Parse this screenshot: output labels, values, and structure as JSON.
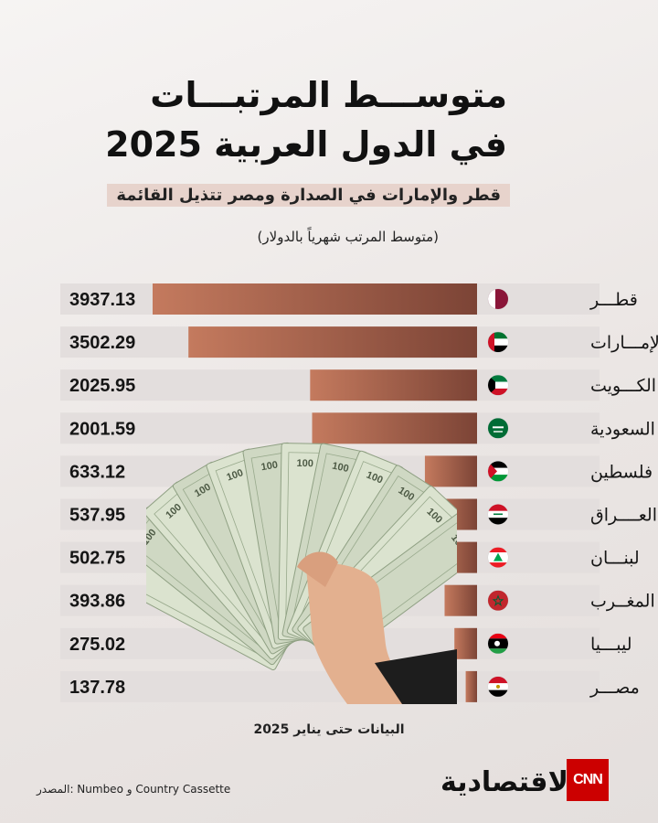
{
  "title_line1": "متوســـط المرتبـــات",
  "title_line2": "في الدول العربية 2025",
  "subtitle": "قطر والإمارات في الصدارة ومصر تتذيل القائمة",
  "unit_note": "(متوسط المرتب شهرياً بالدولار)",
  "footnote": "البيانات حتى يناير 2025",
  "source": "المصدر: Numbeo و Country Cassette",
  "brand": "الاقتصادية",
  "cnn": "CNN",
  "colors": {
    "bar_light": "#c47a5e",
    "bar_dark": "#7c4436",
    "row_bg": "#e3dedd"
  },
  "chart_data": {
    "type": "bar",
    "orientation": "horizontal",
    "categories": [
      "قطـــر",
      "الإمـــارات",
      "الكـــويت",
      "السعودية",
      "فلسطين",
      "العــــراق",
      "لبنـــان",
      "المغــرب",
      "ليبـــيا",
      "مصـــر"
    ],
    "values": [
      3937.13,
      3502.29,
      2025.95,
      2001.59,
      633.12,
      537.95,
      502.75,
      393.86,
      275.02,
      137.78
    ],
    "value_labels": [
      "3937.13",
      "3502.29",
      "2025.95",
      "2001.59",
      "633.12",
      "537.95",
      "502.75",
      "393.86",
      "275.02",
      "137.78"
    ],
    "flags": [
      "qatar-flag-icon",
      "uae-flag-icon",
      "kuwait-flag-icon",
      "saudi-flag-icon",
      "palestine-flag-icon",
      "iraq-flag-icon",
      "lebanon-flag-icon",
      "morocco-flag-icon",
      "libya-flag-icon",
      "egypt-flag-icon"
    ],
    "xlim": [
      0,
      4000
    ]
  }
}
